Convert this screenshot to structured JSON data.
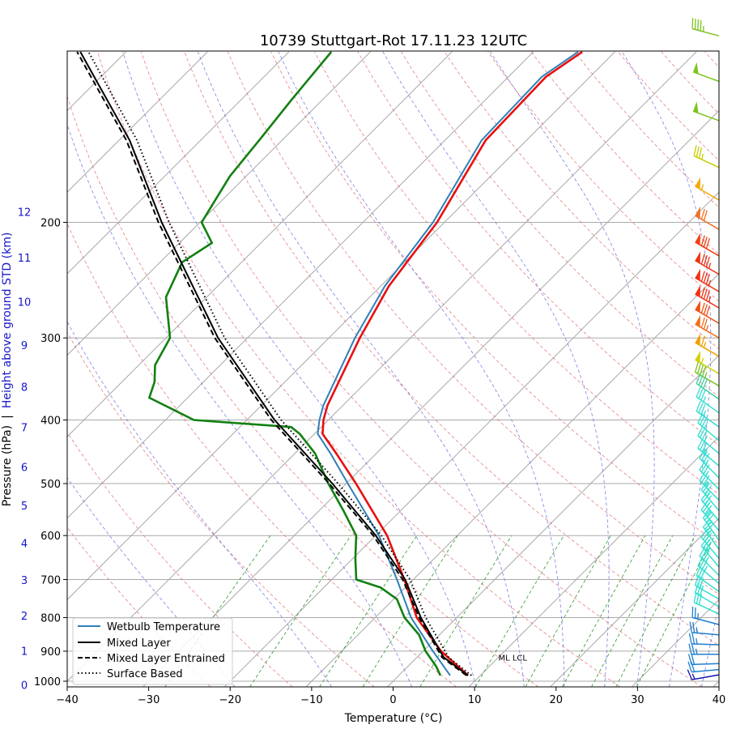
{
  "chart_data": {
    "type": "line",
    "title": "10739 Stuttgart-Rot 17.11.23 12UTC",
    "xlabel": "Temperature (°C)",
    "ylabel_pressure": "Pressure (hPa)",
    "ylabel_separator": "|",
    "ylabel_height": "Height above ground STD (km)",
    "xlim": [
      -40,
      40
    ],
    "ylim_hPa": [
      1020,
      110
    ],
    "x_ticks": [
      -40,
      -30,
      -20,
      -10,
      0,
      10,
      20,
      30,
      40
    ],
    "p_ticks": [
      200,
      300,
      400,
      500,
      600,
      700,
      800,
      900,
      1000
    ],
    "height_ticks_km": [
      0,
      1,
      2,
      3,
      4,
      5,
      6,
      7,
      8,
      9,
      10,
      11,
      12
    ],
    "grid": true,
    "series": [
      {
        "name": "Temperature",
        "color": "#e81010",
        "style": "solid",
        "p": [
          980,
          900,
          800,
          700,
          600,
          500,
          450,
          420,
          400,
          380,
          300,
          250,
          200,
          150,
          120,
          110
        ],
        "T": [
          8.5,
          2.2,
          -4.9,
          -11.1,
          -18.6,
          -28.8,
          -34.9,
          -39.0,
          -40.6,
          -41.9,
          -46.2,
          -49.0,
          -50.9,
          -55.0,
          -55.4,
          -54.0
        ]
      },
      {
        "name": "Wetbulb Temperature",
        "color": "#2f7fb8",
        "style": "solid",
        "p": [
          980,
          900,
          800,
          700,
          600,
          500,
          450,
          420,
          400,
          380,
          300,
          250,
          200,
          150,
          120,
          110
        ],
        "T": [
          6.3,
          1.2,
          -5.6,
          -12.0,
          -19.6,
          -29.8,
          -35.6,
          -39.6,
          -41.1,
          -42.4,
          -46.8,
          -49.5,
          -51.4,
          -55.5,
          -55.9,
          -54.5
        ]
      },
      {
        "name": "Dewpoint",
        "color": "#128012",
        "style": "solid",
        "p": [
          980,
          950,
          900,
          850,
          800,
          750,
          720,
          700,
          650,
          600,
          550,
          500,
          450,
          420,
          410,
          400,
          370,
          350,
          330,
          300,
          260,
          230,
          215,
          200,
          170,
          150,
          130,
          110
        ],
        "T": [
          5.1,
          3.5,
          0.3,
          -2.5,
          -6.4,
          -9.6,
          -13.0,
          -17.0,
          -19.7,
          -22.4,
          -27.0,
          -32.2,
          -37.5,
          -41.8,
          -43.7,
          -56.5,
          -64.7,
          -66.0,
          -68.0,
          -69.5,
          -75.0,
          -77.3,
          -76.0,
          -79.8,
          -82.0,
          -82.8,
          -83.8,
          -84.8
        ]
      },
      {
        "name": "Mixed Layer",
        "color": "#000000",
        "style": "solid",
        "p": [
          980,
          920,
          800,
          700,
          600,
          500,
          400,
          300,
          200,
          150,
          110
        ],
        "T": [
          8.5,
          3.3,
          -4.4,
          -11.0,
          -20.0,
          -31.7,
          -46.6,
          -63.6,
          -84.7,
          -98.7,
          -115.6
        ]
      },
      {
        "name": "Mixed Layer Entrained",
        "color": "#000000",
        "style": "dashed",
        "p": [
          980,
          920,
          800,
          700,
          600,
          500,
          400,
          300,
          200,
          150,
          110
        ],
        "T": [
          8.3,
          3.1,
          -4.6,
          -11.3,
          -20.3,
          -32.1,
          -47.0,
          -64.0,
          -85.1,
          -99.1,
          -116.0
        ]
      },
      {
        "name": "Surface Based",
        "color": "#000000",
        "style": "dotted",
        "p": [
          980,
          920,
          800,
          700,
          600,
          500,
          400,
          300,
          200,
          150,
          110
        ],
        "T": [
          8.9,
          3.9,
          -3.8,
          -10.4,
          -19.3,
          -31.0,
          -45.8,
          -62.8,
          -83.8,
          -97.8,
          -114.6
        ]
      }
    ],
    "legend": {
      "placement": "lower-left",
      "entries": [
        "Wetbulb Temperature",
        "Mixed Layer",
        "Mixed Layer Entrained",
        "Surface Based"
      ]
    },
    "annotations": [
      {
        "text": "ML LCL",
        "p": 920,
        "T": 10
      }
    ],
    "background_lines": {
      "dry_adiabats_theta_K": [
        250,
        260,
        270,
        280,
        290,
        300,
        310,
        320,
        330,
        340,
        350,
        360,
        370,
        380,
        390,
        400,
        410,
        420,
        430,
        440
      ],
      "moist_adiabats_T1000_C": [
        -20,
        -8,
        2,
        10,
        16,
        21,
        26,
        30,
        34,
        38
      ],
      "mixing_ratio_gkg": [
        0.4,
        1,
        2,
        3,
        5,
        8,
        12,
        16,
        20,
        24,
        28
      ]
    },
    "wind_barbs": [
      {
        "p": 104,
        "speed_kt": 45,
        "dir": 285,
        "color": "#7dc41f"
      },
      {
        "p": 122,
        "speed_kt": 50,
        "dir": 290,
        "color": "#7dc41f"
      },
      {
        "p": 140,
        "speed_kt": 50,
        "dir": 290,
        "color": "#7dc41f"
      },
      {
        "p": 165,
        "speed_kt": 35,
        "dir": 295,
        "color": "#c8cc00"
      },
      {
        "p": 185,
        "speed_kt": 55,
        "dir": 300,
        "color": "#f0a800"
      },
      {
        "p": 205,
        "speed_kt": 70,
        "dir": 300,
        "color": "#f07020"
      },
      {
        "p": 225,
        "speed_kt": 80,
        "dir": 300,
        "color": "#f04010"
      },
      {
        "p": 240,
        "speed_kt": 85,
        "dir": 300,
        "color": "#f03010"
      },
      {
        "p": 255,
        "speed_kt": 85,
        "dir": 300,
        "color": "#f03010"
      },
      {
        "p": 270,
        "speed_kt": 85,
        "dir": 300,
        "color": "#f03010"
      },
      {
        "p": 285,
        "speed_kt": 80,
        "dir": 300,
        "color": "#f05010"
      },
      {
        "p": 300,
        "speed_kt": 75,
        "dir": 300,
        "color": "#f07020"
      },
      {
        "p": 320,
        "speed_kt": 65,
        "dir": 300,
        "color": "#f0a000"
      },
      {
        "p": 340,
        "speed_kt": 55,
        "dir": 300,
        "color": "#d4d000"
      },
      {
        "p": 355,
        "speed_kt": 45,
        "dir": 300,
        "color": "#7dc41f"
      },
      {
        "p": 372,
        "speed_kt": 40,
        "dir": 305,
        "color": "#40d0a0"
      },
      {
        "p": 390,
        "speed_kt": 35,
        "dir": 305,
        "color": "#30e0d0"
      },
      {
        "p": 410,
        "speed_kt": 35,
        "dir": 305,
        "color": "#30e0d0"
      },
      {
        "p": 430,
        "speed_kt": 35,
        "dir": 310,
        "color": "#30e0d0"
      },
      {
        "p": 450,
        "speed_kt": 35,
        "dir": 310,
        "color": "#30e0d0"
      },
      {
        "p": 470,
        "speed_kt": 35,
        "dir": 310,
        "color": "#30e0d0"
      },
      {
        "p": 490,
        "speed_kt": 35,
        "dir": 315,
        "color": "#30e0d0"
      },
      {
        "p": 510,
        "speed_kt": 35,
        "dir": 315,
        "color": "#30e0d0"
      },
      {
        "p": 530,
        "speed_kt": 35,
        "dir": 315,
        "color": "#30e0d0"
      },
      {
        "p": 550,
        "speed_kt": 35,
        "dir": 320,
        "color": "#30e0d0"
      },
      {
        "p": 570,
        "speed_kt": 35,
        "dir": 320,
        "color": "#30e0d0"
      },
      {
        "p": 590,
        "speed_kt": 35,
        "dir": 320,
        "color": "#30e0d0"
      },
      {
        "p": 610,
        "speed_kt": 35,
        "dir": 325,
        "color": "#30e0d0"
      },
      {
        "p": 630,
        "speed_kt": 35,
        "dir": 325,
        "color": "#30e0d0"
      },
      {
        "p": 650,
        "speed_kt": 35,
        "dir": 320,
        "color": "#30e0d0"
      },
      {
        "p": 670,
        "speed_kt": 35,
        "dir": 320,
        "color": "#30e0d0"
      },
      {
        "p": 690,
        "speed_kt": 35,
        "dir": 315,
        "color": "#30e0d0"
      },
      {
        "p": 710,
        "speed_kt": 35,
        "dir": 310,
        "color": "#30e0d0"
      },
      {
        "p": 730,
        "speed_kt": 30,
        "dir": 305,
        "color": "#30e0d0"
      },
      {
        "p": 750,
        "speed_kt": 30,
        "dir": 300,
        "color": "#30e0d0"
      },
      {
        "p": 770,
        "speed_kt": 30,
        "dir": 300,
        "color": "#30e0d0"
      },
      {
        "p": 790,
        "speed_kt": 30,
        "dir": 295,
        "color": "#30e0d0"
      },
      {
        "p": 820,
        "speed_kt": 25,
        "dir": 285,
        "color": "#1e7fd0"
      },
      {
        "p": 850,
        "speed_kt": 25,
        "dir": 275,
        "color": "#1e7fd0"
      },
      {
        "p": 880,
        "speed_kt": 25,
        "dir": 272,
        "color": "#1e7fd0"
      },
      {
        "p": 910,
        "speed_kt": 25,
        "dir": 270,
        "color": "#1e7fd0"
      },
      {
        "p": 940,
        "speed_kt": 20,
        "dir": 268,
        "color": "#1e7fd0"
      },
      {
        "p": 960,
        "speed_kt": 20,
        "dir": 265,
        "color": "#1e7fd0"
      },
      {
        "p": 978,
        "speed_kt": 15,
        "dir": 260,
        "color": "#1010b0"
      }
    ]
  }
}
